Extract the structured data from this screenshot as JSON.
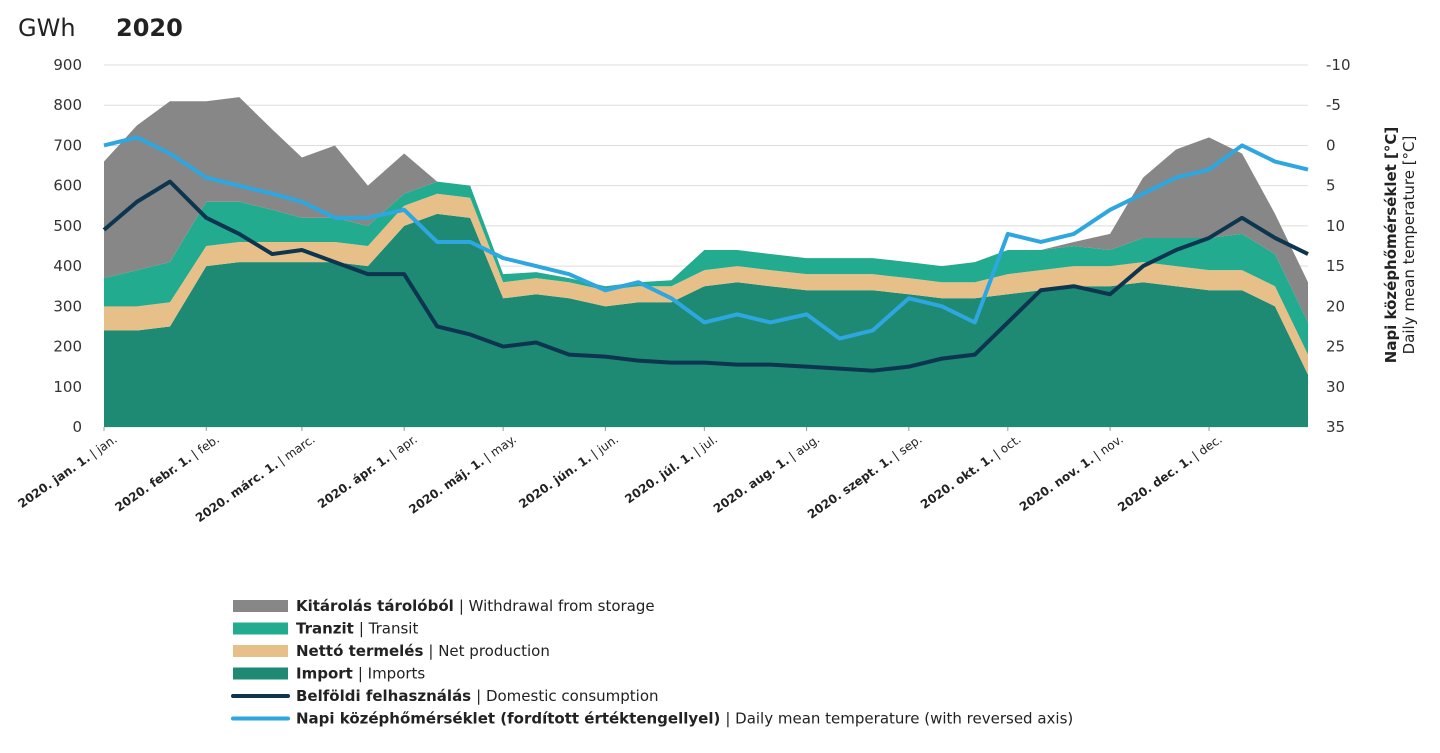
{
  "chart_data": {
    "type": "stacked-area-line",
    "title": "2020",
    "y_label": "GWh",
    "y2_label": "Napi középhőmérséklet [°C]",
    "y2_label_en": "Daily mean temperature [°C]",
    "x": [
      "2020-01-01",
      "2020-01-11",
      "2020-01-21",
      "2020-02-01",
      "2020-02-11",
      "2020-02-21",
      "2020-03-01",
      "2020-03-11",
      "2020-03-21",
      "2020-04-01",
      "2020-04-11",
      "2020-04-21",
      "2020-05-01",
      "2020-05-11",
      "2020-05-21",
      "2020-06-01",
      "2020-06-11",
      "2020-06-21",
      "2020-07-01",
      "2020-07-11",
      "2020-07-21",
      "2020-08-01",
      "2020-08-11",
      "2020-08-21",
      "2020-09-01",
      "2020-09-11",
      "2020-09-21",
      "2020-10-01",
      "2020-10-11",
      "2020-10-21",
      "2020-11-01",
      "2020-11-11",
      "2020-11-21",
      "2020-12-01",
      "2020-12-11",
      "2020-12-21",
      "2020-12-31"
    ],
    "xlim": [
      "2020-01-01",
      "2020-12-31"
    ],
    "xticks": [
      {
        "value": "2020-01-01",
        "label": "2020. jan. 1.",
        "sublabel": "| jan."
      },
      {
        "value": "2020-02-01",
        "label": "2020. febr. 1.",
        "sublabel": "| feb."
      },
      {
        "value": "2020-03-01",
        "label": "2020. márc. 1.",
        "sublabel": "| marc."
      },
      {
        "value": "2020-04-01",
        "label": "2020. ápr. 1.",
        "sublabel": "| apr."
      },
      {
        "value": "2020-05-01",
        "label": "2020. máj. 1.",
        "sublabel": "| may."
      },
      {
        "value": "2020-06-01",
        "label": "2020. jún. 1.",
        "sublabel": "| jun."
      },
      {
        "value": "2020-07-01",
        "label": "2020. júl. 1.",
        "sublabel": "| jul."
      },
      {
        "value": "2020-08-01",
        "label": "2020. aug. 1.",
        "sublabel": "| aug."
      },
      {
        "value": "2020-09-01",
        "label": "2020. szept. 1.",
        "sublabel": "| sep."
      },
      {
        "value": "2020-10-01",
        "label": "2020. okt. 1.",
        "sublabel": "| oct."
      },
      {
        "value": "2020-11-01",
        "label": "2020. nov. 1.",
        "sublabel": "| nov."
      },
      {
        "value": "2020-12-01",
        "label": "2020. dec. 1.",
        "sublabel": "| dec."
      }
    ],
    "ylim": [
      0,
      900
    ],
    "yticks": [
      0,
      100,
      200,
      300,
      400,
      500,
      600,
      700,
      800,
      900
    ],
    "y2lim": [
      35,
      -10
    ],
    "y2ticks": [
      35,
      30,
      25,
      20,
      15,
      10,
      5,
      0,
      -5,
      -10
    ],
    "grid": true,
    "series": [
      {
        "name": "Import",
        "name_en": "| Imports",
        "color": "#1e8a74",
        "kind": "area",
        "values": [
          240,
          240,
          250,
          400,
          410,
          410,
          410,
          410,
          400,
          500,
          530,
          520,
          320,
          330,
          320,
          300,
          310,
          310,
          350,
          360,
          350,
          340,
          340,
          340,
          330,
          320,
          320,
          330,
          340,
          350,
          350,
          360,
          350,
          340,
          340,
          300,
          130
        ]
      },
      {
        "name": "Nettó termelés",
        "name_en": "| Net production",
        "color": "#e6c088",
        "kind": "area",
        "values": [
          60,
          60,
          60,
          50,
          50,
          50,
          50,
          50,
          50,
          50,
          50,
          50,
          40,
          40,
          40,
          40,
          40,
          40,
          40,
          40,
          40,
          40,
          40,
          40,
          40,
          40,
          40,
          50,
          50,
          50,
          50,
          50,
          50,
          50,
          50,
          50,
          50
        ]
      },
      {
        "name": "Tranzit",
        "name_en": "| Transit",
        "color": "#22ab8e",
        "kind": "area",
        "values": [
          70,
          90,
          100,
          110,
          100,
          80,
          60,
          60,
          50,
          30,
          30,
          30,
          20,
          15,
          10,
          10,
          10,
          15,
          50,
          40,
          40,
          40,
          40,
          40,
          40,
          40,
          50,
          60,
          50,
          50,
          40,
          60,
          70,
          80,
          90,
          80,
          80
        ]
      },
      {
        "name": "Kitárolás tárolóból",
        "name_en": "| Withdrawal from storage",
        "color": "#878787",
        "kind": "area",
        "values": [
          290,
          360,
          400,
          250,
          260,
          200,
          150,
          180,
          100,
          100,
          0,
          0,
          0,
          0,
          0,
          0,
          0,
          0,
          0,
          0,
          0,
          0,
          0,
          0,
          0,
          0,
          0,
          0,
          0,
          10,
          40,
          150,
          220,
          250,
          200,
          100,
          100
        ]
      },
      {
        "name": "Belföldi felhasználás",
        "name_en": "| Domestic consumption",
        "color": "#0e3550",
        "kind": "line",
        "values": [
          490,
          560,
          610,
          520,
          480,
          430,
          440,
          410,
          380,
          380,
          250,
          230,
          200,
          210,
          180,
          175,
          165,
          160,
          160,
          155,
          155,
          150,
          145,
          140,
          150,
          170,
          180,
          260,
          340,
          350,
          330,
          400,
          440,
          470,
          520,
          470,
          430
        ]
      },
      {
        "name": "Napi középhőmérséklet (fordított értéktengellyel)",
        "name_en": "| Daily mean temperature (with reversed axis)",
        "color": "#2ea6e0",
        "kind": "line",
        "axis": "y2",
        "values": [
          0,
          -1,
          1,
          4,
          5,
          6,
          7,
          9,
          9,
          8,
          12,
          12,
          14,
          15,
          16,
          18,
          17,
          19,
          22,
          21,
          22,
          21,
          24,
          23,
          19,
          20,
          22,
          11,
          12,
          11,
          8,
          6,
          4,
          3,
          0,
          2,
          3
        ]
      }
    ],
    "legend_order": [
      3,
      2,
      1,
      0,
      4,
      5
    ]
  }
}
